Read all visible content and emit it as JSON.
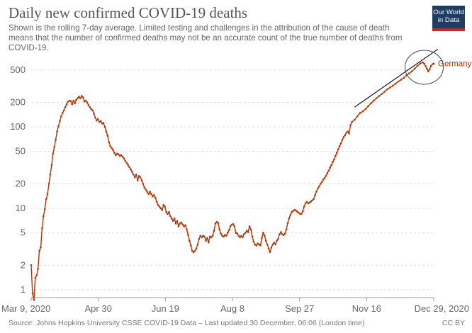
{
  "title": "Daily new confirmed COVID-19 deaths",
  "subtitle": "Shown is the rolling 7-day average. Limited testing and challenges in the attribution of the cause of death means that the number of confirmed deaths may not be an accurate count of the true number of deaths from COVID-19.",
  "logo": {
    "line1": "Our World",
    "line2": "in Data"
  },
  "footer": "Source: Johns Hopkins University CSSE COVID-19 Data – Last updated 30 December, 06:06 (London time)",
  "license": "CC BY",
  "colors": {
    "series": "#b13507",
    "grid": "#dddddd",
    "logo_bg": "#1d3d63",
    "logo_accent": "#ce261e"
  },
  "chart_data": {
    "type": "line",
    "scale_y": "log",
    "ylim": [
      0.8,
      700
    ],
    "y_ticks": [
      1,
      2,
      5,
      10,
      20,
      50,
      100,
      200,
      500
    ],
    "x_range": [
      "2020-03-09",
      "2020-12-29"
    ],
    "x_ticks": [
      "Mar 9, 2020",
      "Apr 30",
      "Jun 19",
      "Aug 8",
      "Sep 27",
      "Nov 16",
      "Dec 29, 2020"
    ],
    "grid": "horizontal dashed",
    "series": [
      {
        "name": "Germany",
        "points": [
          [
            "2020-03-09",
            2.0
          ],
          [
            "2020-03-10",
            0.9
          ],
          [
            "2020-03-11",
            0.75
          ],
          [
            "2020-03-12",
            1.4
          ],
          [
            "2020-03-13",
            1.5
          ],
          [
            "2020-03-14",
            1.8
          ],
          [
            "2020-03-15",
            3.0
          ],
          [
            "2020-03-16",
            3.3
          ],
          [
            "2020-03-17",
            5.7
          ],
          [
            "2020-03-18",
            8.0
          ],
          [
            "2020-03-19",
            9.8
          ],
          [
            "2020-03-20",
            13
          ],
          [
            "2020-03-21",
            15
          ],
          [
            "2020-03-22",
            20
          ],
          [
            "2020-03-23",
            26
          ],
          [
            "2020-03-24",
            34
          ],
          [
            "2020-03-25",
            47
          ],
          [
            "2020-03-26",
            57
          ],
          [
            "2020-03-27",
            70
          ],
          [
            "2020-03-28",
            88
          ],
          [
            "2020-03-29",
            102
          ],
          [
            "2020-03-30",
            118
          ],
          [
            "2020-03-31",
            135
          ],
          [
            "2020-04-01",
            148
          ],
          [
            "2020-04-02",
            160
          ],
          [
            "2020-04-03",
            175
          ],
          [
            "2020-04-04",
            190
          ],
          [
            "2020-04-05",
            205
          ],
          [
            "2020-04-06",
            210
          ],
          [
            "2020-04-07",
            208
          ],
          [
            "2020-04-08",
            190
          ],
          [
            "2020-04-09",
            210
          ],
          [
            "2020-04-10",
            195
          ],
          [
            "2020-04-11",
            215
          ],
          [
            "2020-04-12",
            225
          ],
          [
            "2020-04-13",
            235
          ],
          [
            "2020-04-14",
            225
          ],
          [
            "2020-04-15",
            240
          ],
          [
            "2020-04-16",
            230
          ],
          [
            "2020-04-17",
            205
          ],
          [
            "2020-04-18",
            210
          ],
          [
            "2020-04-19",
            200
          ],
          [
            "2020-04-20",
            185
          ],
          [
            "2020-04-21",
            175
          ],
          [
            "2020-04-22",
            165
          ],
          [
            "2020-04-23",
            160
          ],
          [
            "2020-04-24",
            145
          ],
          [
            "2020-04-25",
            130
          ],
          [
            "2020-04-26",
            120
          ],
          [
            "2020-04-27",
            125
          ],
          [
            "2020-04-28",
            115
          ],
          [
            "2020-04-29",
            118
          ],
          [
            "2020-04-30",
            110
          ],
          [
            "2020-05-01",
            112
          ],
          [
            "2020-05-02",
            100
          ],
          [
            "2020-05-03",
            88
          ],
          [
            "2020-05-04",
            78
          ],
          [
            "2020-05-05",
            65
          ],
          [
            "2020-05-06",
            58
          ],
          [
            "2020-05-07",
            55
          ],
          [
            "2020-05-08",
            52
          ],
          [
            "2020-05-09",
            48
          ],
          [
            "2020-05-10",
            45
          ],
          [
            "2020-05-11",
            47
          ],
          [
            "2020-05-12",
            46
          ],
          [
            "2020-05-13",
            44
          ],
          [
            "2020-05-14",
            45
          ],
          [
            "2020-05-15",
            43
          ],
          [
            "2020-05-16",
            41
          ],
          [
            "2020-05-17",
            38
          ],
          [
            "2020-05-18",
            36
          ],
          [
            "2020-05-19",
            34
          ],
          [
            "2020-05-20",
            32
          ],
          [
            "2020-05-21",
            30
          ],
          [
            "2020-05-22",
            28
          ],
          [
            "2020-05-23",
            26
          ],
          [
            "2020-05-24",
            24
          ],
          [
            "2020-05-25",
            26
          ],
          [
            "2020-05-26",
            22
          ],
          [
            "2020-05-27",
            25
          ],
          [
            "2020-05-28",
            24
          ],
          [
            "2020-05-29",
            22
          ],
          [
            "2020-05-30",
            20
          ],
          [
            "2020-05-31",
            18
          ],
          [
            "2020-06-01",
            17
          ],
          [
            "2020-06-02",
            16
          ],
          [
            "2020-06-03",
            15
          ],
          [
            "2020-06-04",
            16
          ],
          [
            "2020-06-05",
            15
          ],
          [
            "2020-06-06",
            14
          ],
          [
            "2020-06-07",
            14.5
          ],
          [
            "2020-06-08",
            13.5
          ],
          [
            "2020-06-09",
            12
          ],
          [
            "2020-06-10",
            11
          ],
          [
            "2020-06-11",
            10.5
          ],
          [
            "2020-06-12",
            10
          ],
          [
            "2020-06-13",
            9.5
          ],
          [
            "2020-06-14",
            11
          ],
          [
            "2020-06-15",
            10.5
          ],
          [
            "2020-06-16",
            9
          ],
          [
            "2020-06-17",
            8.5
          ],
          [
            "2020-06-18",
            9
          ],
          [
            "2020-06-19",
            8
          ],
          [
            "2020-06-20",
            7.5
          ],
          [
            "2020-06-21",
            7
          ],
          [
            "2020-06-22",
            7.5
          ],
          [
            "2020-06-23",
            6.5
          ],
          [
            "2020-06-24",
            7
          ],
          [
            "2020-06-25",
            6
          ],
          [
            "2020-06-26",
            6.5
          ],
          [
            "2020-06-27",
            6.7
          ],
          [
            "2020-06-28",
            6.3
          ],
          [
            "2020-06-29",
            6.0
          ],
          [
            "2020-06-30",
            6.2
          ],
          [
            "2020-07-01",
            5.5
          ],
          [
            "2020-07-02",
            4.7
          ],
          [
            "2020-07-03",
            4.0
          ],
          [
            "2020-07-04",
            3.5
          ],
          [
            "2020-07-05",
            3.0
          ],
          [
            "2020-07-06",
            2.9
          ],
          [
            "2020-07-07",
            3.0
          ],
          [
            "2020-07-08",
            3.2
          ],
          [
            "2020-07-09",
            3.6
          ],
          [
            "2020-07-10",
            4.2
          ],
          [
            "2020-07-11",
            4.6
          ],
          [
            "2020-07-12",
            4.4
          ],
          [
            "2020-07-13",
            4.6
          ],
          [
            "2020-07-14",
            4.5
          ],
          [
            "2020-07-15",
            4.0
          ],
          [
            "2020-07-16",
            4.3
          ],
          [
            "2020-07-17",
            3.8
          ],
          [
            "2020-07-18",
            4.5
          ],
          [
            "2020-07-19",
            4.4
          ],
          [
            "2020-07-20",
            4.6
          ],
          [
            "2020-07-21",
            5.3
          ],
          [
            "2020-07-22",
            6.5
          ],
          [
            "2020-07-23",
            6.8
          ],
          [
            "2020-07-24",
            6.6
          ],
          [
            "2020-07-25",
            5.5
          ],
          [
            "2020-07-26",
            4.9
          ],
          [
            "2020-07-27",
            4.6
          ],
          [
            "2020-07-28",
            4.5
          ],
          [
            "2020-07-29",
            4.7
          ],
          [
            "2020-07-30",
            4.6
          ],
          [
            "2020-07-31",
            5.0
          ],
          [
            "2020-08-01",
            5.4
          ],
          [
            "2020-08-02",
            6.0
          ],
          [
            "2020-08-03",
            6.3
          ],
          [
            "2020-08-04",
            6.4
          ],
          [
            "2020-08-05",
            6.0
          ],
          [
            "2020-08-06",
            5.0
          ],
          [
            "2020-08-07",
            4.9
          ],
          [
            "2020-08-08",
            4.6
          ],
          [
            "2020-08-09",
            4.4
          ],
          [
            "2020-08-10",
            4.6
          ],
          [
            "2020-08-11",
            4.4
          ],
          [
            "2020-08-12",
            4.8
          ],
          [
            "2020-08-13",
            5.0
          ],
          [
            "2020-08-14",
            5.3
          ],
          [
            "2020-08-15",
            5.1
          ],
          [
            "2020-08-16",
            6.0
          ],
          [
            "2020-08-17",
            5.5
          ],
          [
            "2020-08-18",
            4.5
          ],
          [
            "2020-08-19",
            3.9
          ],
          [
            "2020-08-20",
            3.6
          ],
          [
            "2020-08-21",
            3.5
          ],
          [
            "2020-08-22",
            3.7
          ],
          [
            "2020-08-23",
            3.6
          ],
          [
            "2020-08-24",
            3.5
          ],
          [
            "2020-08-25",
            4.3
          ],
          [
            "2020-08-26",
            5.0
          ],
          [
            "2020-08-27",
            4.6
          ],
          [
            "2020-08-28",
            4.0
          ],
          [
            "2020-08-29",
            3.6
          ],
          [
            "2020-08-30",
            3.2
          ],
          [
            "2020-08-31",
            2.9
          ],
          [
            "2020-09-01",
            3.3
          ],
          [
            "2020-09-02",
            3.6
          ],
          [
            "2020-09-03",
            3.8
          ],
          [
            "2020-09-04",
            3.6
          ],
          [
            "2020-09-05",
            4.0
          ],
          [
            "2020-09-06",
            4.2
          ],
          [
            "2020-09-07",
            4.8
          ],
          [
            "2020-09-08",
            5.1
          ],
          [
            "2020-09-09",
            4.8
          ],
          [
            "2020-09-10",
            4.7
          ],
          [
            "2020-09-11",
            4.9
          ],
          [
            "2020-09-12",
            5.5
          ],
          [
            "2020-09-13",
            6.6
          ],
          [
            "2020-09-14",
            7.5
          ],
          [
            "2020-09-15",
            8.3
          ],
          [
            "2020-09-16",
            9.0
          ],
          [
            "2020-09-17",
            9.3
          ],
          [
            "2020-09-18",
            9.6
          ],
          [
            "2020-09-19",
            9.4
          ],
          [
            "2020-09-20",
            9.1
          ],
          [
            "2020-09-21",
            8.8
          ],
          [
            "2020-09-22",
            8.6
          ],
          [
            "2020-09-23",
            8.5
          ],
          [
            "2020-09-24",
            9.2
          ],
          [
            "2020-09-25",
            10.5
          ],
          [
            "2020-09-26",
            11.5
          ],
          [
            "2020-09-27",
            12.0
          ],
          [
            "2020-09-28",
            11.5
          ],
          [
            "2020-09-29",
            11.8
          ],
          [
            "2020-09-30",
            12.1
          ],
          [
            "2020-10-01",
            12.5
          ],
          [
            "2020-10-02",
            13.0
          ],
          [
            "2020-10-03",
            14.5
          ],
          [
            "2020-10-04",
            16.0
          ],
          [
            "2020-10-05",
            17.5
          ],
          [
            "2020-10-06",
            18.5
          ],
          [
            "2020-10-07",
            20.0
          ],
          [
            "2020-10-08",
            21.0
          ],
          [
            "2020-10-09",
            22.5
          ],
          [
            "2020-10-10",
            23.5
          ],
          [
            "2020-10-11",
            25.0
          ],
          [
            "2020-10-12",
            27.0
          ],
          [
            "2020-10-13",
            29.0
          ],
          [
            "2020-10-14",
            31.5
          ],
          [
            "2020-10-15",
            34.0
          ],
          [
            "2020-10-16",
            37.0
          ],
          [
            "2020-10-17",
            40.0
          ],
          [
            "2020-10-18",
            44.0
          ],
          [
            "2020-10-19",
            48.0
          ],
          [
            "2020-10-20",
            53.0
          ],
          [
            "2020-10-21",
            58.0
          ],
          [
            "2020-10-22",
            63.0
          ],
          [
            "2020-10-23",
            69.0
          ],
          [
            "2020-10-24",
            75.0
          ],
          [
            "2020-10-25",
            79.0
          ],
          [
            "2020-10-26",
            85.0
          ],
          [
            "2020-10-27",
            88.0
          ],
          [
            "2020-10-28",
            83.0
          ],
          [
            "2020-10-29",
            105.0
          ],
          [
            "2020-10-30",
            115.0
          ],
          [
            "2020-11-01",
            122.0
          ],
          [
            "2020-11-03",
            135.0
          ],
          [
            "2020-11-05",
            148.0
          ],
          [
            "2020-11-07",
            155.0
          ],
          [
            "2020-11-09",
            165.0
          ],
          [
            "2020-11-11",
            180.0
          ],
          [
            "2020-11-13",
            195.0
          ],
          [
            "2020-11-15",
            210.0
          ],
          [
            "2020-11-17",
            225.0
          ],
          [
            "2020-11-19",
            240.0
          ],
          [
            "2020-11-21",
            255.0
          ],
          [
            "2020-11-23",
            270.0
          ],
          [
            "2020-11-25",
            290.0
          ],
          [
            "2020-11-27",
            305.0
          ],
          [
            "2020-11-29",
            320.0
          ],
          [
            "2020-12-01",
            340.0
          ],
          [
            "2020-12-03",
            360.0
          ],
          [
            "2020-12-05",
            380.0
          ],
          [
            "2020-12-07",
            400.0
          ],
          [
            "2020-12-09",
            430.0
          ],
          [
            "2020-12-11",
            455.0
          ],
          [
            "2020-12-13",
            480.0
          ],
          [
            "2020-12-15",
            520.0
          ],
          [
            "2020-12-17",
            560.0
          ],
          [
            "2020-12-19",
            600.0
          ],
          [
            "2020-12-21",
            620.0
          ],
          [
            "2020-12-22",
            600.0
          ],
          [
            "2020-12-23",
            560.0
          ],
          [
            "2020-12-24",
            520.0
          ],
          [
            "2020-12-25",
            480.0
          ],
          [
            "2020-12-26",
            510.0
          ],
          [
            "2020-12-27",
            560.0
          ],
          [
            "2020-12-28",
            590.0
          ],
          [
            "2020-12-29",
            600.0
          ]
        ]
      }
    ],
    "annotations": [
      "trend line drawn over Oct–Dec rise",
      "circle highlighting late-December values"
    ]
  }
}
